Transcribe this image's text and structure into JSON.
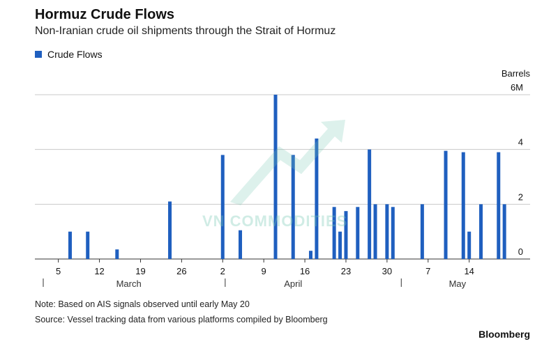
{
  "title": "Hormuz Crude Flows",
  "subtitle": "Non-Iranian crude oil shipments through the Strait of Hormuz",
  "legend_label": "Crude Flows",
  "note": "Note: Based on AIS signals observed until early May 20",
  "source": "Source: Vessel tracking data from various platforms compiled by Bloomberg",
  "brand": "Bloomberg",
  "watermark": "VN COMMODITIES",
  "colors": {
    "bar": "#1f5fbf",
    "grid": "#c8c8c8",
    "axis": "#333333"
  },
  "chart_data": {
    "type": "bar",
    "title": "Hormuz Crude Flows",
    "subtitle": "Non-Iranian crude oil shipments through the Strait of Hormuz",
    "ylabel": "Barrels",
    "ylim": [
      0,
      6
    ],
    "y_ticks": [
      "0",
      "2",
      "4",
      "6M"
    ],
    "grid": true,
    "legend_position": "top-left",
    "series": [
      {
        "name": "Crude Flows"
      }
    ],
    "x_ticks": [
      "5",
      "12",
      "19",
      "26",
      "2",
      "9",
      "16",
      "23",
      "30",
      "7",
      "14"
    ],
    "months": [
      "March",
      "April",
      "May"
    ],
    "x": [
      "2023-03-07",
      "2023-03-10",
      "2023-03-15",
      "2023-03-24",
      "2023-04-02",
      "2023-04-05",
      "2023-04-11",
      "2023-04-14",
      "2023-04-17",
      "2023-04-18",
      "2023-04-21",
      "2023-04-22",
      "2023-04-23",
      "2023-04-25",
      "2023-04-27",
      "2023-04-28",
      "2023-04-30",
      "2023-05-01",
      "2023-05-06",
      "2023-05-10",
      "2023-05-13",
      "2023-05-14",
      "2023-05-16",
      "2023-05-19",
      "2023-05-20"
    ],
    "values": [
      1.0,
      1.0,
      0.35,
      2.1,
      3.8,
      1.05,
      6.0,
      3.8,
      0.3,
      4.4,
      1.9,
      1.0,
      1.75,
      1.9,
      4.0,
      2.0,
      2.0,
      1.9,
      2.0,
      3.95,
      3.9,
      1.0,
      2.0,
      3.9,
      2.0
    ]
  }
}
